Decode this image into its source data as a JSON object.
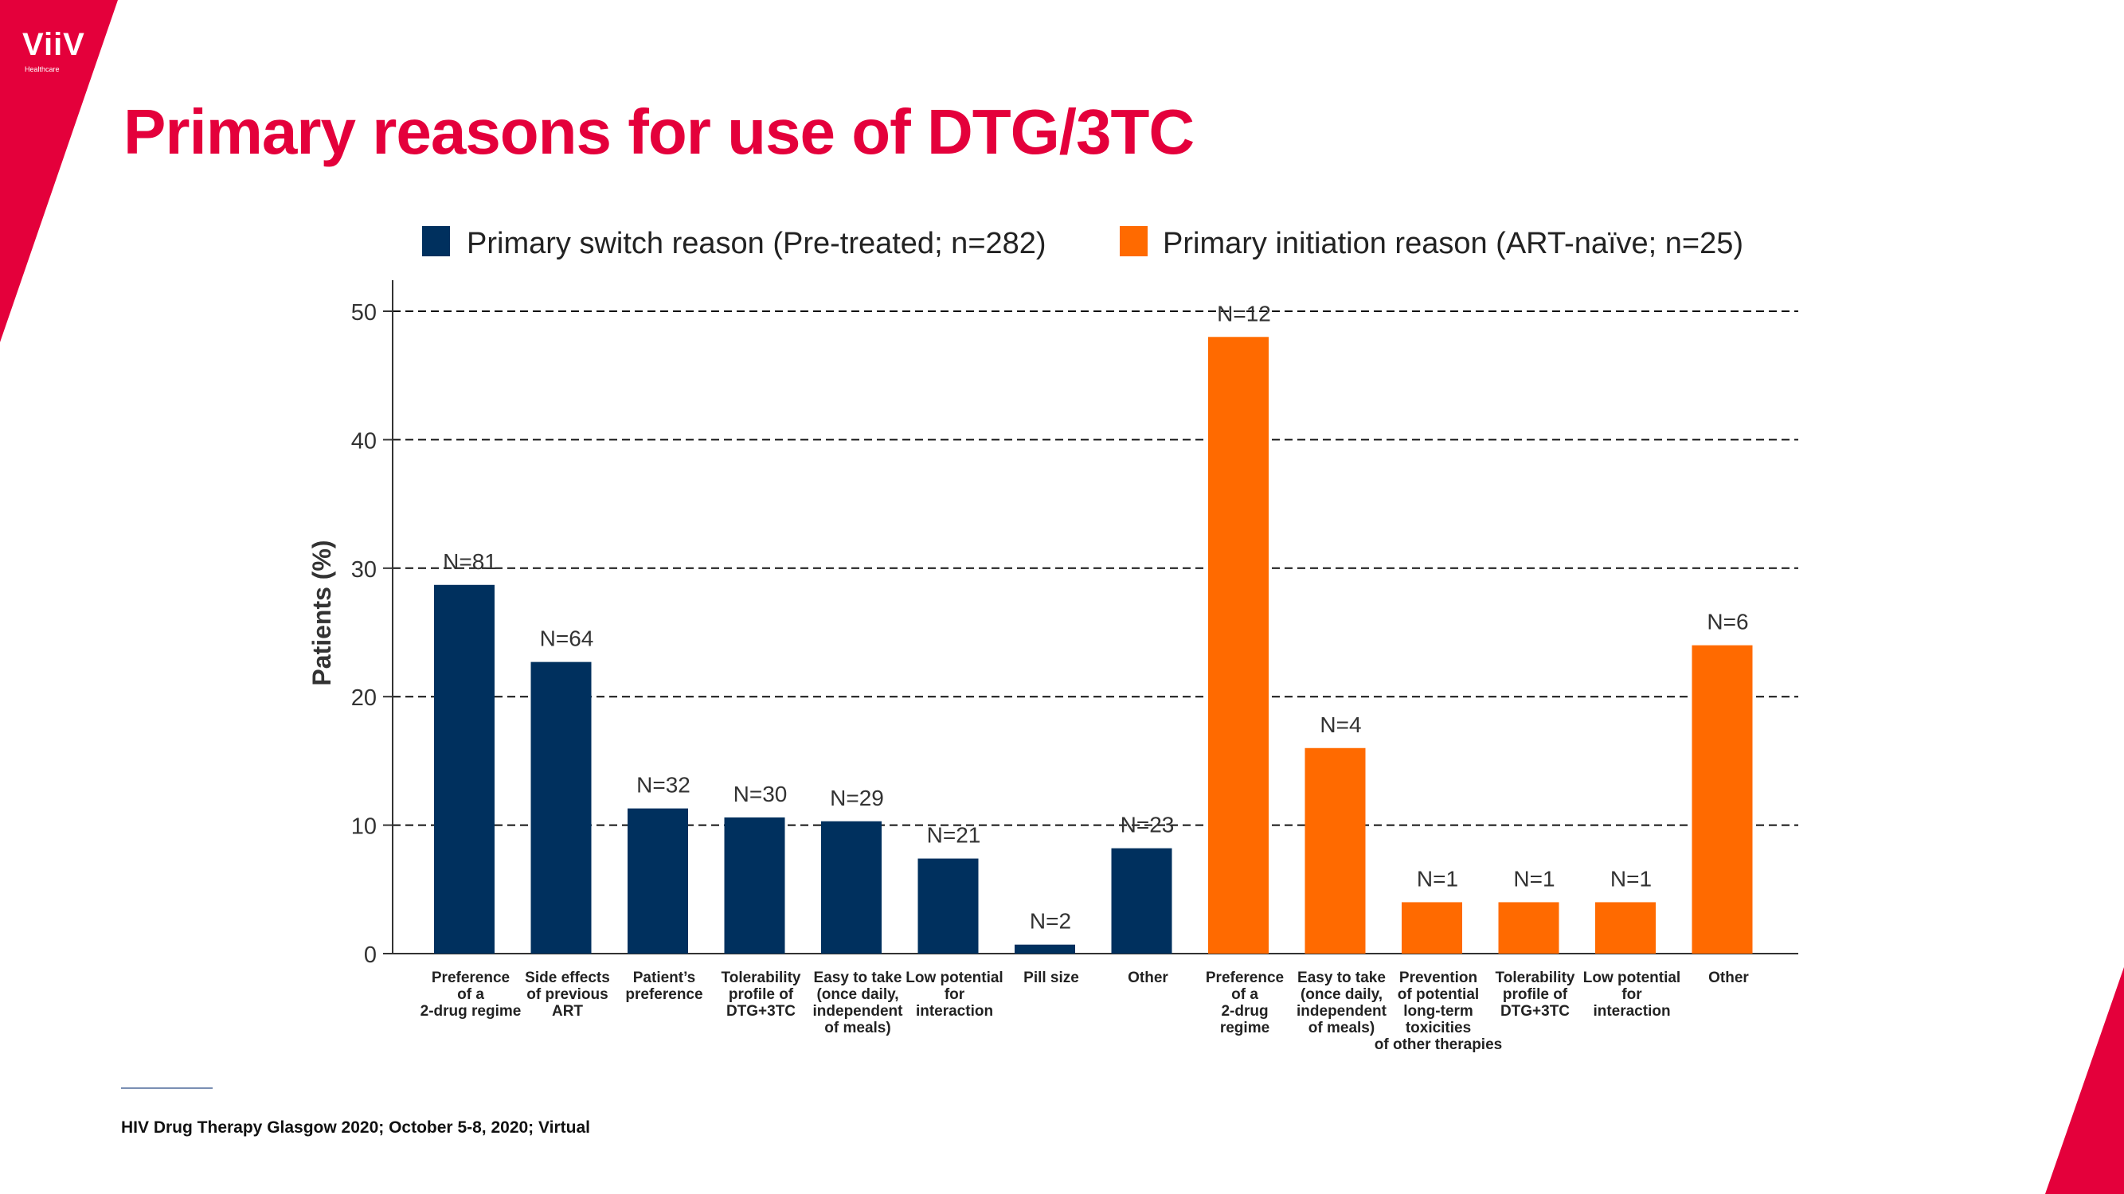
{
  "brand": {
    "logo_text": "ViiV",
    "logo_sub": "Healthcare",
    "accent": "#e4003b"
  },
  "title": "Primary reasons for use of DTG/3TC",
  "footnote": "HIV Drug Therapy Glasgow 2020; October 5-8, 2020; Virtual",
  "chart_data": {
    "type": "bar",
    "ylabel": "Patients (%)",
    "ylim": [
      0,
      50
    ],
    "yticks": [
      0,
      10,
      20,
      30,
      40,
      50
    ],
    "grid": "dashed",
    "legend": [
      {
        "label": "Primary switch reason (Pre-treated; n=282)",
        "color": "#00305e"
      },
      {
        "label": "Primary initiation reason (ART-naïve; n=25)",
        "color": "#ff6a00"
      }
    ],
    "series": [
      {
        "name": "Primary switch reason (Pre-treated; n=282)",
        "color": "#00305e",
        "categories": [
          [
            "Preference",
            "of a",
            "2-drug regime"
          ],
          [
            "Side effects",
            "of previous",
            "ART"
          ],
          [
            "Patient’s",
            "preference"
          ],
          [
            "Tolerability",
            "profile of",
            "DTG+3TC"
          ],
          [
            "Easy to take",
            "(once daily,",
            "independent",
            "of meals)"
          ],
          [
            "Low potential",
            "for",
            "interaction"
          ],
          [
            "Pill size"
          ],
          [
            "Other"
          ]
        ],
        "values": [
          28.7,
          22.7,
          11.3,
          10.6,
          10.3,
          7.4,
          0.7,
          8.2
        ],
        "labels": [
          "N=81",
          "N=64",
          "N=32",
          "N=30",
          "N=29",
          "N=21",
          "N=2",
          "N=23"
        ]
      },
      {
        "name": "Primary initiation reason (ART-naïve; n=25)",
        "color": "#ff6a00",
        "categories": [
          [
            "Preference",
            "of a",
            "2-drug",
            "regime"
          ],
          [
            "Easy to take",
            "(once daily,",
            "independent",
            "of meals)"
          ],
          [
            "Prevention",
            "of potential",
            "long-term",
            "toxicities",
            "of other therapies"
          ],
          [
            "Tolerability",
            "profile of",
            "DTG+3TC"
          ],
          [
            "Low potential",
            "for",
            "interaction"
          ],
          [
            "Other"
          ]
        ],
        "values": [
          48,
          16,
          4,
          4,
          4,
          24
        ],
        "labels": [
          "N=12",
          "N=4",
          "N=1",
          "N=1",
          "N=1",
          "N=6"
        ]
      }
    ]
  }
}
